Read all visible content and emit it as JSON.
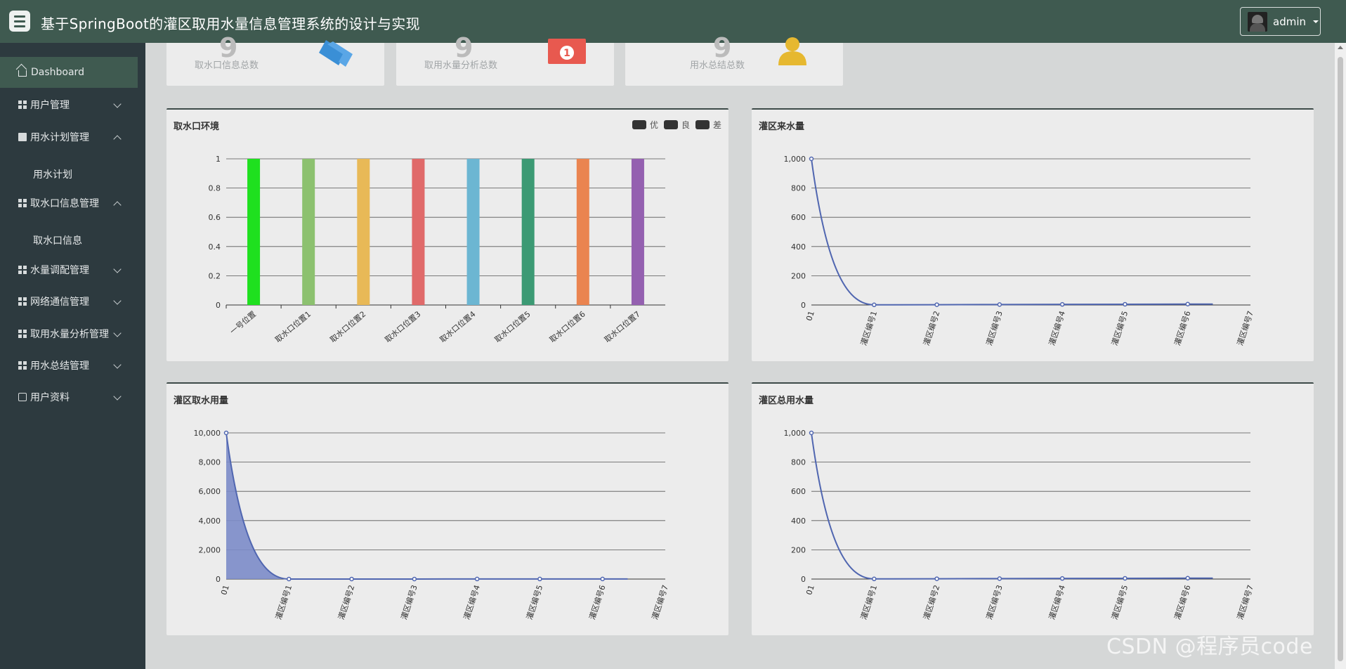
{
  "header": {
    "title": "基于SpringBoot的灌区取用水量信息管理系统的设计与实现",
    "user": "admin"
  },
  "sidebar": {
    "items": [
      {
        "label": "Dashboard",
        "icon": "home-icon",
        "state": "active"
      },
      {
        "label": "用户管理",
        "icon": "grid-icon",
        "state": "collapsed"
      },
      {
        "label": "用水计划管理",
        "icon": "document-icon",
        "state": "expanded"
      },
      {
        "label": "用水计划",
        "icon": "",
        "state": "sub"
      },
      {
        "label": "取水口信息管理",
        "icon": "grid-icon",
        "state": "expanded"
      },
      {
        "label": "取水口信息",
        "icon": "",
        "state": "sub"
      },
      {
        "label": "水量调配管理",
        "icon": "grid-icon",
        "state": "collapsed"
      },
      {
        "label": "网络通信管理",
        "icon": "grid-icon",
        "state": "collapsed"
      },
      {
        "label": "取用水量分析管理",
        "icon": "grid-icon",
        "state": "collapsed"
      },
      {
        "label": "用水总结管理",
        "icon": "grid-icon",
        "state": "collapsed"
      },
      {
        "label": "用户资料",
        "icon": "id-card-icon",
        "state": "collapsed"
      }
    ]
  },
  "stats": [
    {
      "value": "9",
      "label": "取水口信息总数",
      "icon": "tag-icon",
      "color": "#3a8fd6"
    },
    {
      "value": "9",
      "label": "取用水量分析总数",
      "icon": "money-icon",
      "color": "#e8594f"
    },
    {
      "value": "9",
      "label": "用水总结总数",
      "icon": "user-icon",
      "color": "#e6b830"
    }
  ],
  "watermark": "CSDN @程序员code",
  "chart_data": [
    {
      "type": "bar",
      "title": "取水口环境",
      "legend": [
        "优",
        "良",
        "差"
      ],
      "legend_position": "top-right",
      "categories": [
        "一号位置",
        "取水口位置1",
        "取水口位置2",
        "取水口位置3",
        "取水口位置4",
        "取水口位置5",
        "取水口位置6",
        "取水口位置7"
      ],
      "values": [
        1,
        1,
        1,
        1,
        1,
        1,
        1,
        1
      ],
      "colors": [
        "#1fe01f",
        "#8cc16f",
        "#e8b957",
        "#e06a6a",
        "#6cb6d2",
        "#3c9a74",
        "#ea8450",
        "#9460b0"
      ],
      "ylim": [
        0,
        1
      ],
      "yticks": [
        "0",
        "0.2",
        "0.4",
        "0.6",
        "0.8",
        "1"
      ],
      "grid": true
    },
    {
      "type": "line",
      "title": "灌区来水量",
      "categories": [
        "01",
        "灌区编号1",
        "灌区编号2",
        "灌区编号3",
        "灌区编号4",
        "灌区编号5",
        "灌区编号6",
        "灌区编号7"
      ],
      "values": [
        1000,
        1,
        2,
        3,
        4,
        5,
        6,
        7
      ],
      "ylim": [
        0,
        1000
      ],
      "yticks": [
        "0",
        "200",
        "400",
        "600",
        "800",
        "1,000"
      ],
      "color": "#5066b0",
      "grid": true
    },
    {
      "type": "area",
      "title": "灌区取水用量",
      "categories": [
        "01",
        "灌区编号1",
        "灌区编号2",
        "灌区编号3",
        "灌区编号4",
        "灌区编号5",
        "灌区编号6",
        "灌区编号7"
      ],
      "values": [
        10000,
        1,
        2,
        3,
        4,
        5,
        6,
        7
      ],
      "ylim": [
        0,
        10000
      ],
      "yticks": [
        "0",
        "2,000",
        "4,000",
        "6,000",
        "8,000",
        "10,000"
      ],
      "color": "#5066b0",
      "grid": true
    },
    {
      "type": "line",
      "title": "灌区总用水量",
      "categories": [
        "01",
        "灌区编号1",
        "灌区编号2",
        "灌区编号3",
        "灌区编号4",
        "灌区编号5",
        "灌区编号6",
        "灌区编号7"
      ],
      "values": [
        1000,
        1,
        2,
        3,
        4,
        5,
        6,
        7
      ],
      "ylim": [
        0,
        1000
      ],
      "yticks": [
        "0",
        "200",
        "400",
        "600",
        "800",
        "1,000"
      ],
      "color": "#5066b0",
      "grid": true
    }
  ]
}
